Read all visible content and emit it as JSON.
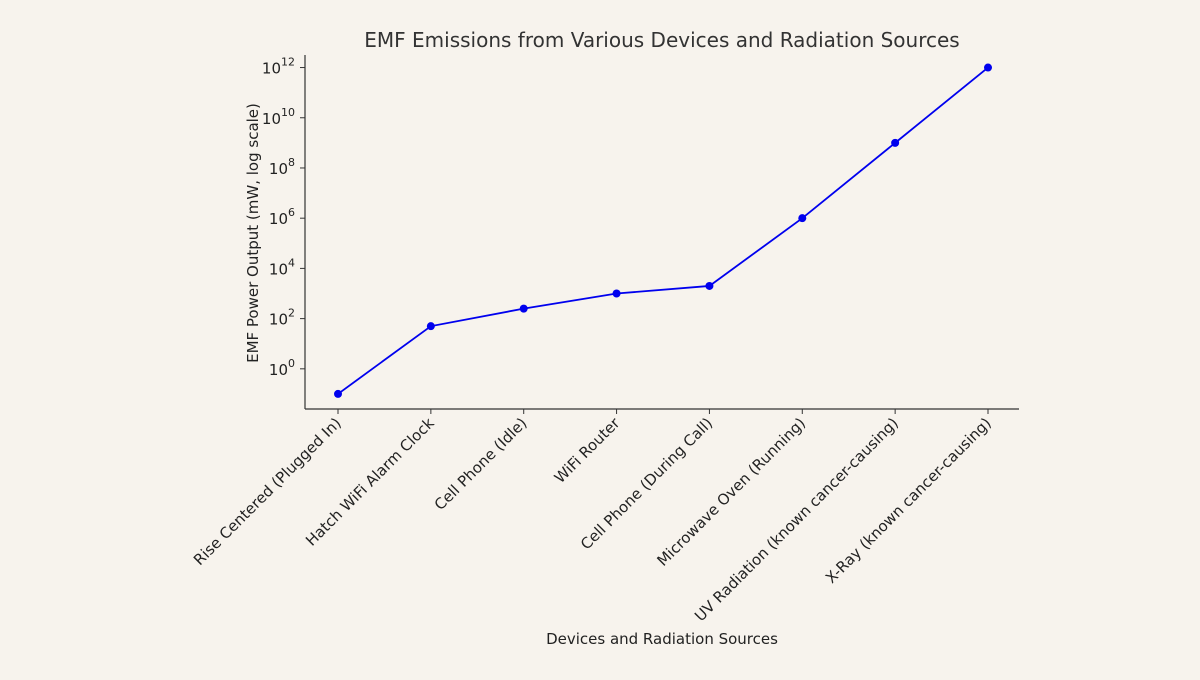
{
  "chart_data": {
    "type": "line",
    "title": "EMF Emissions from Various Devices and Radiation Sources",
    "xlabel": "Devices and Radiation Sources",
    "ylabel": "EMF Power Output (mW, log scale)",
    "y_scale": "log",
    "ylim": [
      0.0251,
      3160000000000.0
    ],
    "y_ticks": [
      {
        "value": 1,
        "base": "10",
        "exp": "0"
      },
      {
        "value": 100,
        "base": "10",
        "exp": "2"
      },
      {
        "value": 10000,
        "base": "10",
        "exp": "4"
      },
      {
        "value": 1000000,
        "base": "10",
        "exp": "6"
      },
      {
        "value": 100000000,
        "base": "10",
        "exp": "8"
      },
      {
        "value": 10000000000,
        "base": "10",
        "exp": "10"
      },
      {
        "value": 1000000000000,
        "base": "10",
        "exp": "12"
      }
    ],
    "categories": [
      "Rise Centered (Plugged In)",
      "Hatch WiFi Alarm Clock",
      "Cell Phone (Idle)",
      "WiFi Router",
      "Cell Phone (During Call)",
      "Microwave Oven (Running)",
      "UV Radiation (known cancer-causing)",
      "X-Ray (known cancer-causing)"
    ],
    "values": [
      0.1,
      50,
      250,
      1000,
      2000,
      1000000,
      1000000000,
      1000000000000
    ],
    "grid": false,
    "colors": {
      "line": "#0000ee",
      "marker": "#0000ee",
      "axis": "#333333"
    }
  }
}
